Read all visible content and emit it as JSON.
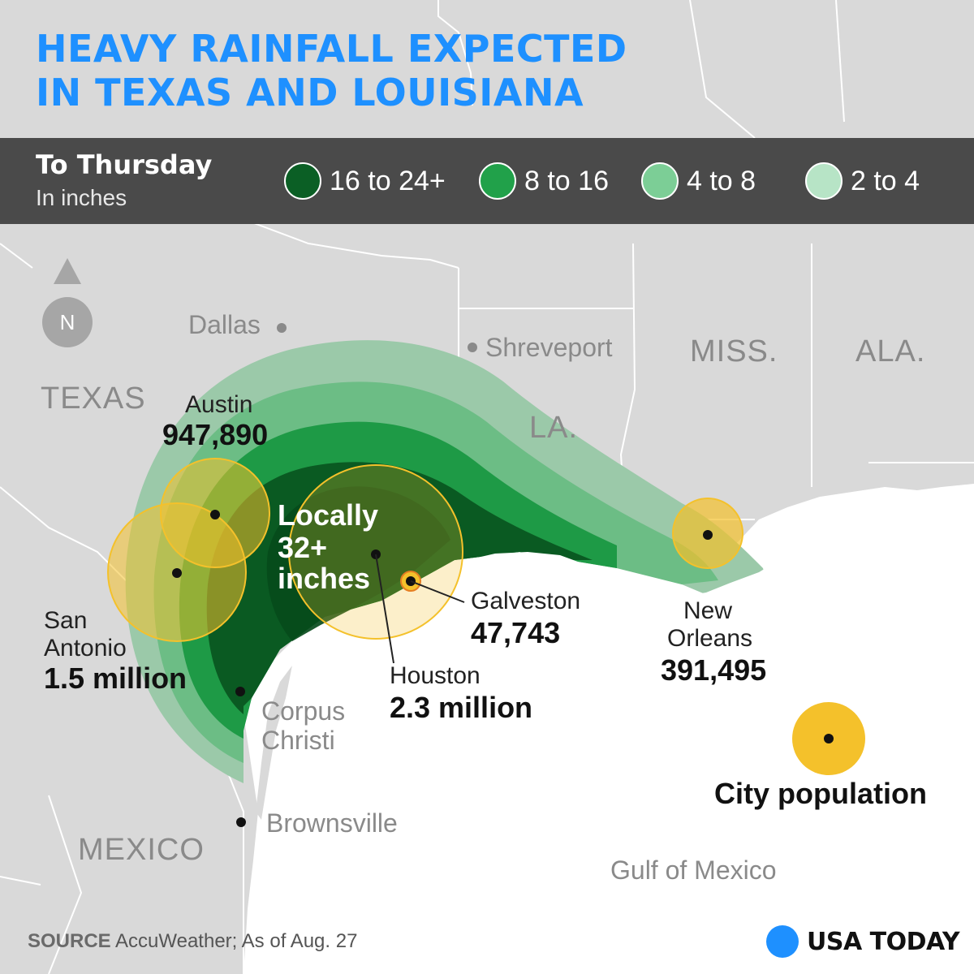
{
  "title": {
    "line1": "HEAVY RAINFALL EXPECTED",
    "line2": "IN TEXAS AND LOUISIANA"
  },
  "legend": {
    "title": "To Thursday",
    "subtitle": "In inches",
    "items": [
      {
        "label": "16 to 24+",
        "color": "#0b5f25"
      },
      {
        "label": "8 to 16",
        "color": "#21a14a"
      },
      {
        "label": "4 to 8",
        "color": "#7cce96"
      },
      {
        "label": "2 to 4",
        "color": "#b7e4c6"
      }
    ]
  },
  "colors": {
    "land": "#d9d9d9",
    "water": "#ffffff",
    "borders": "#ffffff",
    "band_2_4": "#9bc9a9",
    "band_4_8": "#6cbd85",
    "band_8_16": "#1e9a46",
    "band_16_24": "#0a5a22",
    "locally_32": "#054a1b",
    "population_circle": "#f4c12b",
    "accent": "#1e90ff"
  },
  "map": {
    "states": [
      "TEXAS",
      "LA.",
      "MISS.",
      "ALA."
    ],
    "countries": [
      "MEXICO"
    ],
    "water": [
      "Gulf of Mexico"
    ],
    "places": [
      "Dallas",
      "Shreveport",
      "Brownsville"
    ],
    "callout": [
      "Locally",
      "32+",
      "inches"
    ]
  },
  "cities": [
    {
      "name": "Austin",
      "population": "947,890"
    },
    {
      "name_line1": "San",
      "name_line2": "Antonio",
      "population": "1.5 million"
    },
    {
      "name": "Houston",
      "population": "2.3 million"
    },
    {
      "name": "Galveston",
      "population": "47,743"
    },
    {
      "name_line1": "New",
      "name_line2": "Orleans",
      "population": "391,495"
    },
    {
      "name_line1": "Corpus",
      "name_line2": "Christi"
    }
  ],
  "population_key": "City population",
  "north_label": "N",
  "source": {
    "label": "SOURCE",
    "text": "AccuWeather; As of Aug. 27"
  },
  "brand": "USA TODAY"
}
